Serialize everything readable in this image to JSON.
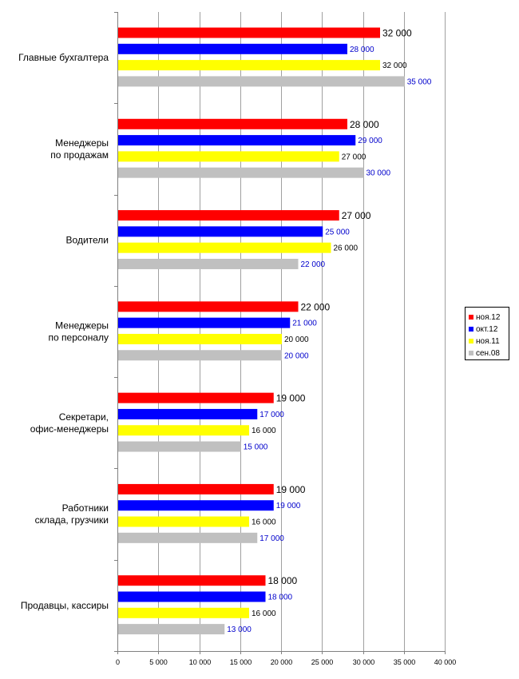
{
  "chart_data": {
    "type": "bar",
    "orientation": "horizontal",
    "categories": [
      "Главные бухгалтера",
      "Менеджеры по продажам",
      "Водители",
      "Менеджеры по персоналу",
      "Секретари, офис-менеджеры",
      "Работники склада, грузчики",
      "Продавцы, кассиры"
    ],
    "series": [
      {
        "name": "ноя.12",
        "color": "#ff0000",
        "label_color": "#000000",
        "values": [
          32000,
          28000,
          27000,
          22000,
          19000,
          19000,
          18000
        ],
        "labels": [
          "32 000",
          "28 000",
          "27 000",
          "22 000",
          "19 000",
          "19 000",
          "18 000"
        ]
      },
      {
        "name": "окт.12",
        "color": "#0000ff",
        "label_color": "#0000cc",
        "values": [
          28000,
          29000,
          25000,
          21000,
          17000,
          19000,
          18000
        ],
        "labels": [
          "28 000",
          "29 000",
          "25 000",
          "21 000",
          "17 000",
          "19 000",
          "18 000"
        ]
      },
      {
        "name": "ноя.11",
        "color": "#ffff00",
        "label_color": "#000000",
        "values": [
          32000,
          27000,
          26000,
          20000,
          16000,
          16000,
          16000
        ],
        "labels": [
          "32 000",
          "27 000",
          "26 000",
          "20 000",
          "16 000",
          "16 000",
          "16 000"
        ]
      },
      {
        "name": "сен.08",
        "color": "#c0c0c0",
        "label_color": "#0000cc",
        "values": [
          35000,
          30000,
          22000,
          20000,
          15000,
          17000,
          13000
        ],
        "labels": [
          "35 000",
          "30 000",
          "22 000",
          "20 000",
          "15 000",
          "17 000",
          "13 000"
        ]
      }
    ],
    "xlim": [
      0,
      40000
    ],
    "xticks": [
      "0",
      "5 000",
      "10 000",
      "15 000",
      "20 000",
      "25 000",
      "30 000",
      "35 000",
      "40 000"
    ],
    "grid": true,
    "legend_position": "right"
  }
}
